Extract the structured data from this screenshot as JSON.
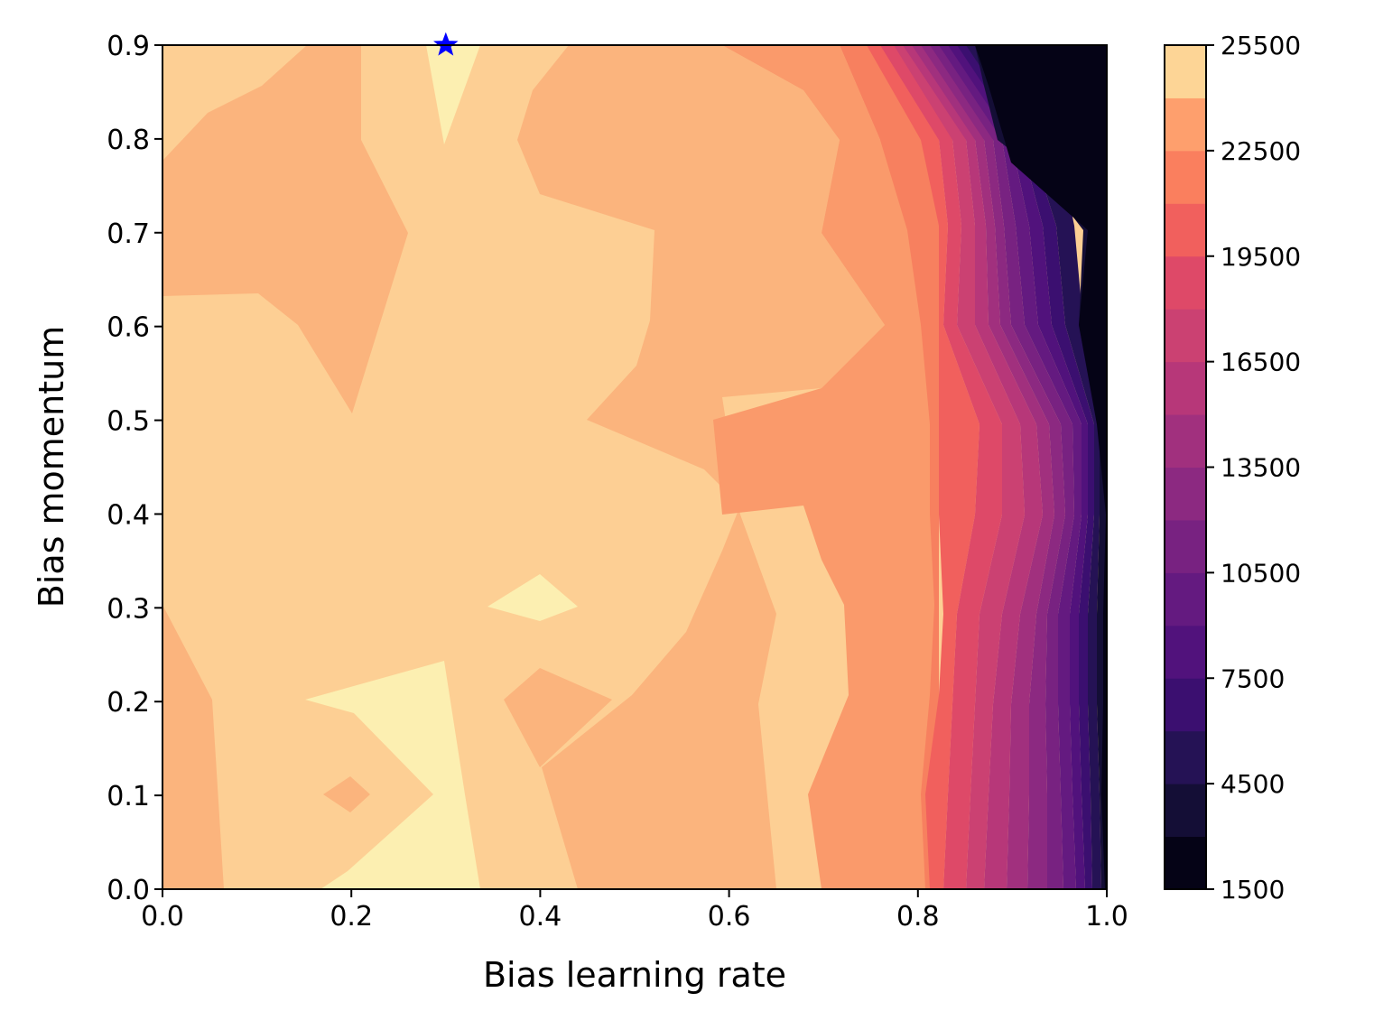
{
  "chart_data": {
    "type": "heatmap",
    "subtype": "filled-contour",
    "title": "",
    "xlabel": "Bias learning rate",
    "ylabel": "Bias momentum",
    "xlim": [
      0.0,
      1.0
    ],
    "ylim": [
      0.0,
      0.9
    ],
    "xticks": [
      "0.0",
      "0.2",
      "0.4",
      "0.6",
      "0.8",
      "1.0"
    ],
    "yticks": [
      "0.0",
      "0.1",
      "0.2",
      "0.3",
      "0.4",
      "0.5",
      "0.6",
      "0.7",
      "0.8",
      "0.9"
    ],
    "colormap": "magma",
    "colorbar": {
      "min": 1500,
      "max": 25500,
      "ticks": [
        "1500",
        "4500",
        "7500",
        "10500",
        "13500",
        "16500",
        "19500",
        "22500",
        "25500"
      ],
      "levels": [
        {
          "from": 1500,
          "to": 3000,
          "color": "#050316"
        },
        {
          "from": 3000,
          "to": 4500,
          "color": "#140e36"
        },
        {
          "from": 4500,
          "to": 6000,
          "color": "#251255"
        },
        {
          "from": 6000,
          "to": 7500,
          "color": "#3b0f70"
        },
        {
          "from": 7500,
          "to": 9000,
          "color": "#51127c"
        },
        {
          "from": 9000,
          "to": 10500,
          "color": "#641a80"
        },
        {
          "from": 10500,
          "to": 12000,
          "color": "#782281"
        },
        {
          "from": 12000,
          "to": 13500,
          "color": "#8c2981"
        },
        {
          "from": 13500,
          "to": 15000,
          "color": "#a1307e"
        },
        {
          "from": 15000,
          "to": 16500,
          "color": "#b73779"
        },
        {
          "from": 16500,
          "to": 18000,
          "color": "#cb4172"
        },
        {
          "from": 18000,
          "to": 19500,
          "color": "#de4968"
        },
        {
          "from": 19500,
          "to": 21000,
          "color": "#f1605d"
        },
        {
          "from": 21000,
          "to": 22500,
          "color": "#fa7f5e"
        },
        {
          "from": 22500,
          "to": 24000,
          "color": "#fe9f6d"
        },
        {
          "from": 24000,
          "to": 25500,
          "color": "#fdd596"
        }
      ]
    },
    "regions": [
      {
        "level": 22500,
        "polygon": [
          [
            0,
            0
          ],
          [
            1,
            0
          ],
          [
            1,
            0.9
          ],
          [
            0,
            0.9
          ]
        ]
      },
      {
        "level": 24000,
        "polygon": [
          [
            0,
            0
          ],
          [
            0.16,
            0
          ],
          [
            0.3,
            0.24
          ],
          [
            0.6,
            0.3
          ],
          [
            0.55,
            0.45
          ],
          [
            0.6,
            0.58
          ],
          [
            0.44,
            0.8
          ],
          [
            0.48,
            0.9
          ],
          [
            0,
            0.9
          ]
        ]
      },
      {
        "level": 24000,
        "polygon": [
          [
            0.05,
            0.2
          ],
          [
            0.2,
            0.7
          ],
          [
            0.24,
            0.78
          ],
          [
            0.38,
            0.8
          ],
          [
            0.37,
            0.5
          ],
          [
            0.47,
            0.47
          ],
          [
            0.6,
            0.58
          ],
          [
            0.65,
            0.9
          ],
          [
            0.72,
            0.9
          ],
          [
            0.6,
            0.0
          ],
          [
            0.33,
            0.0
          ],
          [
            0.32,
            0.22
          ],
          [
            0.16,
            0.2
          ],
          [
            0.06,
            0.2
          ]
        ]
      },
      {
        "level": 21000,
        "polygon": [
          [
            0.6,
            0.0
          ],
          [
            0.8,
            0.0
          ],
          [
            0.8,
            0.9
          ],
          [
            0.6,
            0.9
          ],
          [
            0.62,
            0.83
          ],
          [
            0.57,
            0.76
          ],
          [
            0.58,
            0.74
          ],
          [
            0.52,
            0.68
          ],
          [
            0.52,
            0.57
          ],
          [
            0.47,
            0.5
          ],
          [
            0.58,
            0.42
          ],
          [
            0.61,
            0.36
          ],
          [
            0.55,
            0.2
          ],
          [
            0.63,
            0.12
          ],
          [
            0.6,
            0.0
          ]
        ]
      },
      {
        "level": 19500,
        "polygon": [
          [
            0.8,
            0.0
          ],
          [
            1.0,
            0.0
          ],
          [
            1.0,
            0.9
          ],
          [
            0.8,
            0.9
          ]
        ]
      }
    ],
    "marker": {
      "x": 0.3,
      "y": 0.9,
      "symbol": "star",
      "color": "#0000ff"
    }
  }
}
